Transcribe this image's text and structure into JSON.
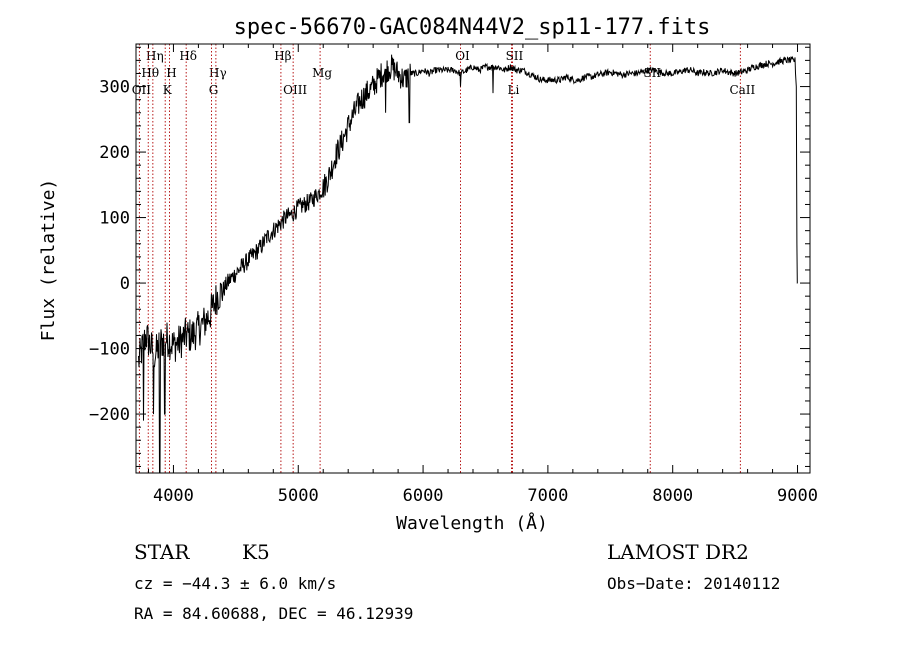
{
  "chart_data": {
    "type": "line",
    "title": "spec-56670-GAC084N44V2_sp11-177.fits",
    "xlabel": "Wavelength (Å)",
    "ylabel": "Flux (relative)",
    "xlim": [
      3700,
      9100
    ],
    "ylim": [
      -290,
      365
    ],
    "x_ticks": [
      4000,
      5000,
      6000,
      7000,
      8000,
      9000
    ],
    "x_tick_labels": [
      "4000",
      "5000",
      "6000",
      "7000",
      "8000",
      "9000"
    ],
    "y_ticks": [
      -200,
      -100,
      0,
      100,
      200,
      300
    ],
    "y_tick_labels": [
      "−200",
      "−100",
      "0",
      "100",
      "200",
      "300"
    ],
    "grid": false,
    "series": [
      {
        "color": "#000000",
        "points": [
          [
            3720,
            -120
          ],
          [
            3780,
            -80
          ],
          [
            3850,
            -110
          ],
          [
            3900,
            -90
          ],
          [
            3950,
            -85
          ],
          [
            4000,
            -95
          ],
          [
            4050,
            -90
          ],
          [
            4100,
            -80
          ],
          [
            4150,
            -80
          ],
          [
            4200,
            -70
          ],
          [
            4250,
            -60
          ],
          [
            4300,
            -45
          ],
          [
            4350,
            -20
          ],
          [
            4400,
            -10
          ],
          [
            4450,
            5
          ],
          [
            4500,
            15
          ],
          [
            4550,
            25
          ],
          [
            4600,
            35
          ],
          [
            4650,
            45
          ],
          [
            4700,
            55
          ],
          [
            4750,
            70
          ],
          [
            4800,
            80
          ],
          [
            4850,
            90
          ],
          [
            4900,
            100
          ],
          [
            4950,
            105
          ],
          [
            5000,
            115
          ],
          [
            5050,
            120
          ],
          [
            5100,
            125
          ],
          [
            5150,
            135
          ],
          [
            5200,
            145
          ],
          [
            5250,
            165
          ],
          [
            5300,
            195
          ],
          [
            5350,
            215
          ],
          [
            5400,
            240
          ],
          [
            5450,
            260
          ],
          [
            5500,
            280
          ],
          [
            5550,
            290
          ],
          [
            5600,
            300
          ],
          [
            5650,
            315
          ],
          [
            5700,
            325
          ],
          [
            5750,
            330
          ],
          [
            5800,
            320
          ],
          [
            5850,
            310
          ],
          [
            5900,
            320
          ],
          [
            5950,
            320
          ],
          [
            6000,
            325
          ],
          [
            6050,
            320
          ],
          [
            6100,
            325
          ],
          [
            6150,
            325
          ],
          [
            6200,
            325
          ],
          [
            6250,
            325
          ],
          [
            6300,
            320
          ],
          [
            6350,
            325
          ],
          [
            6400,
            330
          ],
          [
            6450,
            325
          ],
          [
            6500,
            330
          ],
          [
            6550,
            330
          ],
          [
            6600,
            330
          ],
          [
            6650,
            325
          ],
          [
            6700,
            330
          ],
          [
            6750,
            325
          ],
          [
            6800,
            325
          ],
          [
            6850,
            320
          ],
          [
            6900,
            315
          ],
          [
            6950,
            310
          ],
          [
            7000,
            310
          ],
          [
            7050,
            310
          ],
          [
            7100,
            310
          ],
          [
            7150,
            315
          ],
          [
            7200,
            310
          ],
          [
            7250,
            310
          ],
          [
            7300,
            315
          ],
          [
            7350,
            315
          ],
          [
            7400,
            318
          ],
          [
            7450,
            320
          ],
          [
            7500,
            322
          ],
          [
            7550,
            320
          ],
          [
            7600,
            318
          ],
          [
            7650,
            320
          ],
          [
            7700,
            320
          ],
          [
            7750,
            322
          ],
          [
            7800,
            325
          ],
          [
            7850,
            325
          ],
          [
            7900,
            322
          ],
          [
            7950,
            320
          ],
          [
            8000,
            320
          ],
          [
            8050,
            322
          ],
          [
            8100,
            325
          ],
          [
            8150,
            325
          ],
          [
            8200,
            320
          ],
          [
            8250,
            322
          ],
          [
            8300,
            320
          ],
          [
            8350,
            322
          ],
          [
            8400,
            325
          ],
          [
            8450,
            322
          ],
          [
            8500,
            320
          ],
          [
            8550,
            322
          ],
          [
            8600,
            325
          ],
          [
            8650,
            330
          ],
          [
            8700,
            332
          ],
          [
            8750,
            335
          ],
          [
            8800,
            335
          ],
          [
            8850,
            338
          ],
          [
            8900,
            340
          ],
          [
            8950,
            340
          ],
          [
            8980,
            340
          ],
          [
            8990,
            300
          ],
          [
            8995,
            60
          ],
          [
            9000,
            0
          ]
        ],
        "dips": [
          [
            3760,
            -210
          ],
          [
            3840,
            -200
          ],
          [
            3890,
            -290
          ],
          [
            3930,
            -200
          ],
          [
            5700,
            260
          ],
          [
            5890,
            245
          ],
          [
            6300,
            300
          ],
          [
            6560,
            290
          ]
        ]
      }
    ],
    "line_markers": [
      {
        "label": "Hη",
        "wavelength": 3835,
        "row": 0
      },
      {
        "label": "Hθ",
        "wavelength": 3798,
        "row": 1
      },
      {
        "label": "OII",
        "wavelength": 3727,
        "row": 2
      },
      {
        "label": "Hδ",
        "wavelength": 4102,
        "row": 0
      },
      {
        "label": "H",
        "wavelength": 3968,
        "row": 1
      },
      {
        "label": "K",
        "wavelength": 3934,
        "row": 2
      },
      {
        "label": "Hγ",
        "wavelength": 4340,
        "row": 1
      },
      {
        "label": "G",
        "wavelength": 4305,
        "row": 2
      },
      {
        "label": "Hβ",
        "wavelength": 4861,
        "row": 0
      },
      {
        "label": "OIII",
        "wavelength": 4959,
        "row": 2
      },
      {
        "label": "Mg",
        "wavelength": 5175,
        "row": 1
      },
      {
        "label": "OI",
        "wavelength": 6300,
        "row": 0
      },
      {
        "label": "SII",
        "wavelength": 6716,
        "row": 0
      },
      {
        "label": "Li",
        "wavelength": 6708,
        "row": 2
      },
      {
        "label": "SII",
        "wavelength": 7820,
        "row": 1
      },
      {
        "label": "CaII",
        "wavelength": 8542,
        "row": 2
      }
    ]
  },
  "info": {
    "object_class": "STAR",
    "subclass": "K5",
    "survey": "LAMOST DR2",
    "redshift_line": "cz = −44.3 ± 6.0 km/s",
    "obs_date": "Obs−Date: 20140112",
    "coords": "RA =  84.60688, DEC =  46.12939"
  }
}
